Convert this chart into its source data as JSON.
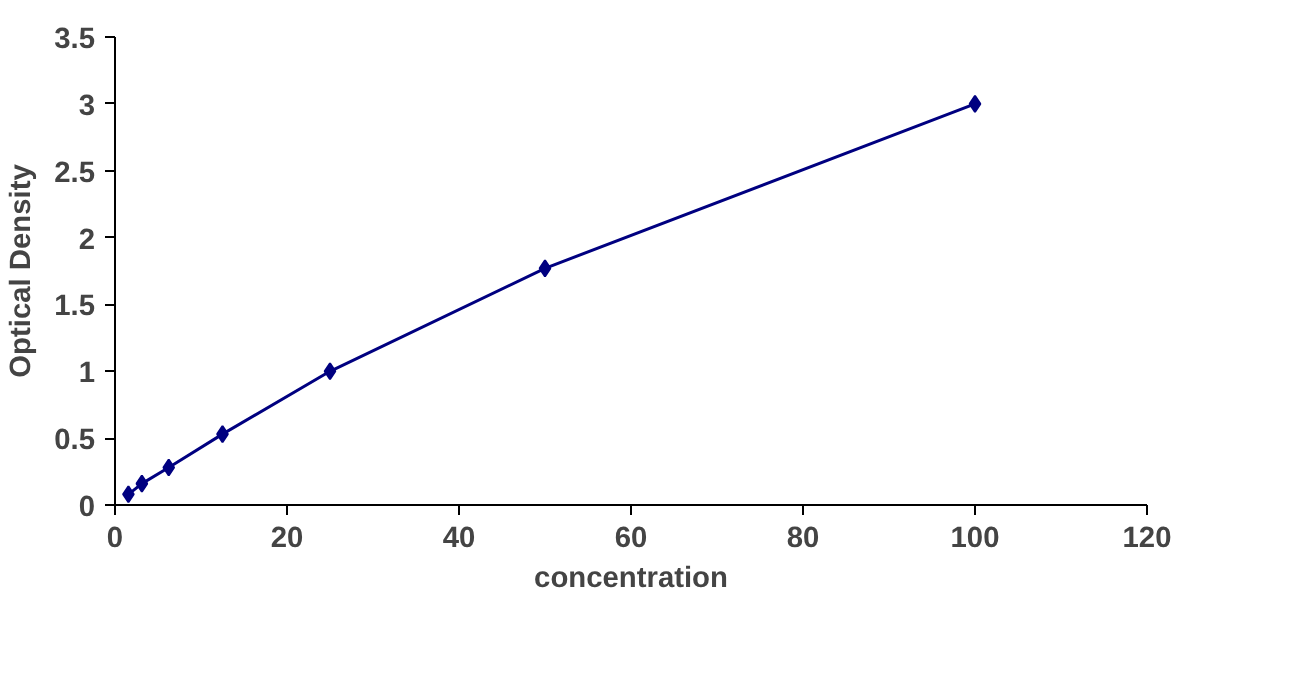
{
  "chart_data": {
    "type": "line",
    "xlabel": "concentration",
    "ylabel": "Optical Density",
    "x": [
      1.56,
      3.125,
      6.25,
      12.5,
      25,
      50,
      100
    ],
    "series": [
      {
        "color": "#000080",
        "values": [
          0.08,
          0.16,
          0.28,
          0.53,
          1.0,
          1.77,
          3.0
        ]
      }
    ],
    "xlim": [
      0,
      120
    ],
    "xticks": [
      0,
      20,
      40,
      60,
      80,
      100,
      120
    ],
    "ylim": [
      0,
      3.5
    ],
    "yticks": [
      0,
      0.5,
      1,
      1.5,
      2,
      2.5,
      3,
      3.5
    ],
    "grid": false,
    "marker": "diamond",
    "line_style": "solid"
  }
}
